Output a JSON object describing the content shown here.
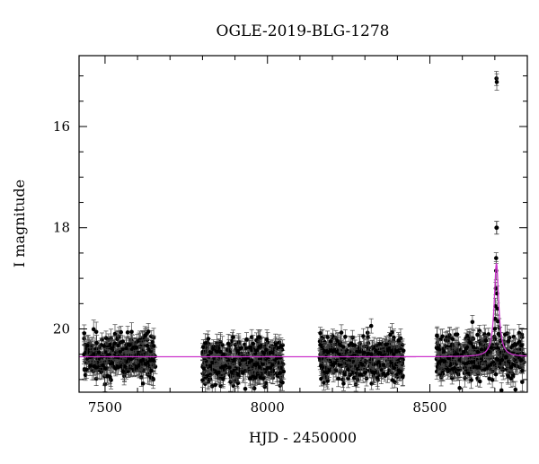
{
  "chart_data": {
    "type": "scatter",
    "title": "OGLE-2019-BLG-1278",
    "xlabel": "HJD - 2450000",
    "ylabel": "I magnitude",
    "xlim": [
      7420,
      8800
    ],
    "ylim": [
      21.25,
      14.6
    ],
    "y_inverted": true,
    "x_ticks": [
      7500,
      8000,
      8500
    ],
    "x_tick_labels": [
      "7500",
      "8000",
      "8500"
    ],
    "y_ticks": [
      16,
      18,
      20
    ],
    "y_tick_labels": [
      "16",
      "18",
      "20"
    ],
    "grid": false,
    "legend": "none",
    "colors": {
      "points": "#000000",
      "model": "#cc33cc",
      "axes": "#000000"
    },
    "seasons": [
      {
        "start": 7435,
        "end": 7655,
        "center": 20.55,
        "scatter": 0.3
      },
      {
        "start": 7800,
        "end": 8050,
        "center": 20.65,
        "scatter": 0.3
      },
      {
        "start": 8160,
        "end": 8420,
        "center": 20.6,
        "scatter": 0.3
      },
      {
        "start": 8520,
        "end": 8790,
        "center": 20.55,
        "scatter": 0.3
      }
    ],
    "peak_points": [
      {
        "x": 8705,
        "y": 15.05
      },
      {
        "x": 8706,
        "y": 15.12
      },
      {
        "x": 8705,
        "y": 18.0
      },
      {
        "x": 8706,
        "y": 18.0
      },
      {
        "x": 8704,
        "y": 18.6
      },
      {
        "x": 8704,
        "y": 18.85
      },
      {
        "x": 8703,
        "y": 19.2
      },
      {
        "x": 8707,
        "y": 19.3
      },
      {
        "x": 8702,
        "y": 19.55
      },
      {
        "x": 8708,
        "y": 19.6
      },
      {
        "x": 8701,
        "y": 19.8
      },
      {
        "x": 8709,
        "y": 19.85
      },
      {
        "x": 8700,
        "y": 20.0
      },
      {
        "x": 8711,
        "y": 20.1
      }
    ],
    "model": {
      "baseline": 20.55,
      "peak_x": 8705,
      "peak_y": 18.7,
      "tE": 12
    },
    "error_bar": 0.15
  }
}
